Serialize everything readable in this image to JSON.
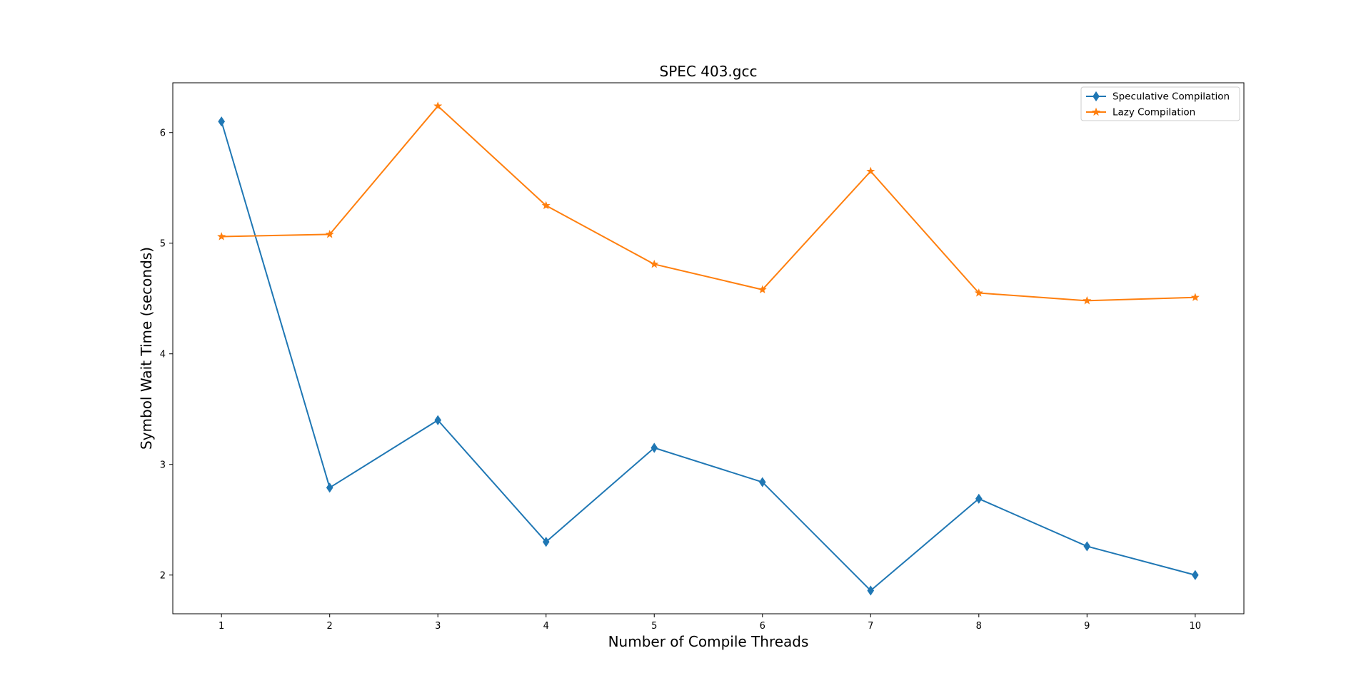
{
  "chart_data": {
    "type": "line",
    "title": "SPEC 403.gcc",
    "xlabel": "Number of Compile Threads",
    "ylabel": "Symbol Wait Time (seconds)",
    "x": [
      1,
      2,
      3,
      4,
      5,
      6,
      7,
      8,
      9,
      10
    ],
    "xticks": [
      1,
      2,
      3,
      4,
      5,
      6,
      7,
      8,
      9,
      10
    ],
    "yticks": [
      2,
      3,
      4,
      5,
      6
    ],
    "xlim": [
      0.55,
      10.45
    ],
    "ylim": [
      1.65,
      6.45
    ],
    "grid": false,
    "legend_position": "top-right",
    "series": [
      {
        "name": "Speculative Compilation",
        "color": "#1f77b4",
        "marker": "diamond",
        "values": [
          6.1,
          2.79,
          3.4,
          2.3,
          3.15,
          2.84,
          1.86,
          2.69,
          2.26,
          2.0
        ]
      },
      {
        "name": "Lazy Compilation",
        "color": "#ff7f0e",
        "marker": "star",
        "values": [
          5.06,
          5.08,
          6.24,
          5.34,
          4.81,
          4.58,
          5.65,
          4.55,
          4.48,
          4.51
        ]
      }
    ]
  }
}
